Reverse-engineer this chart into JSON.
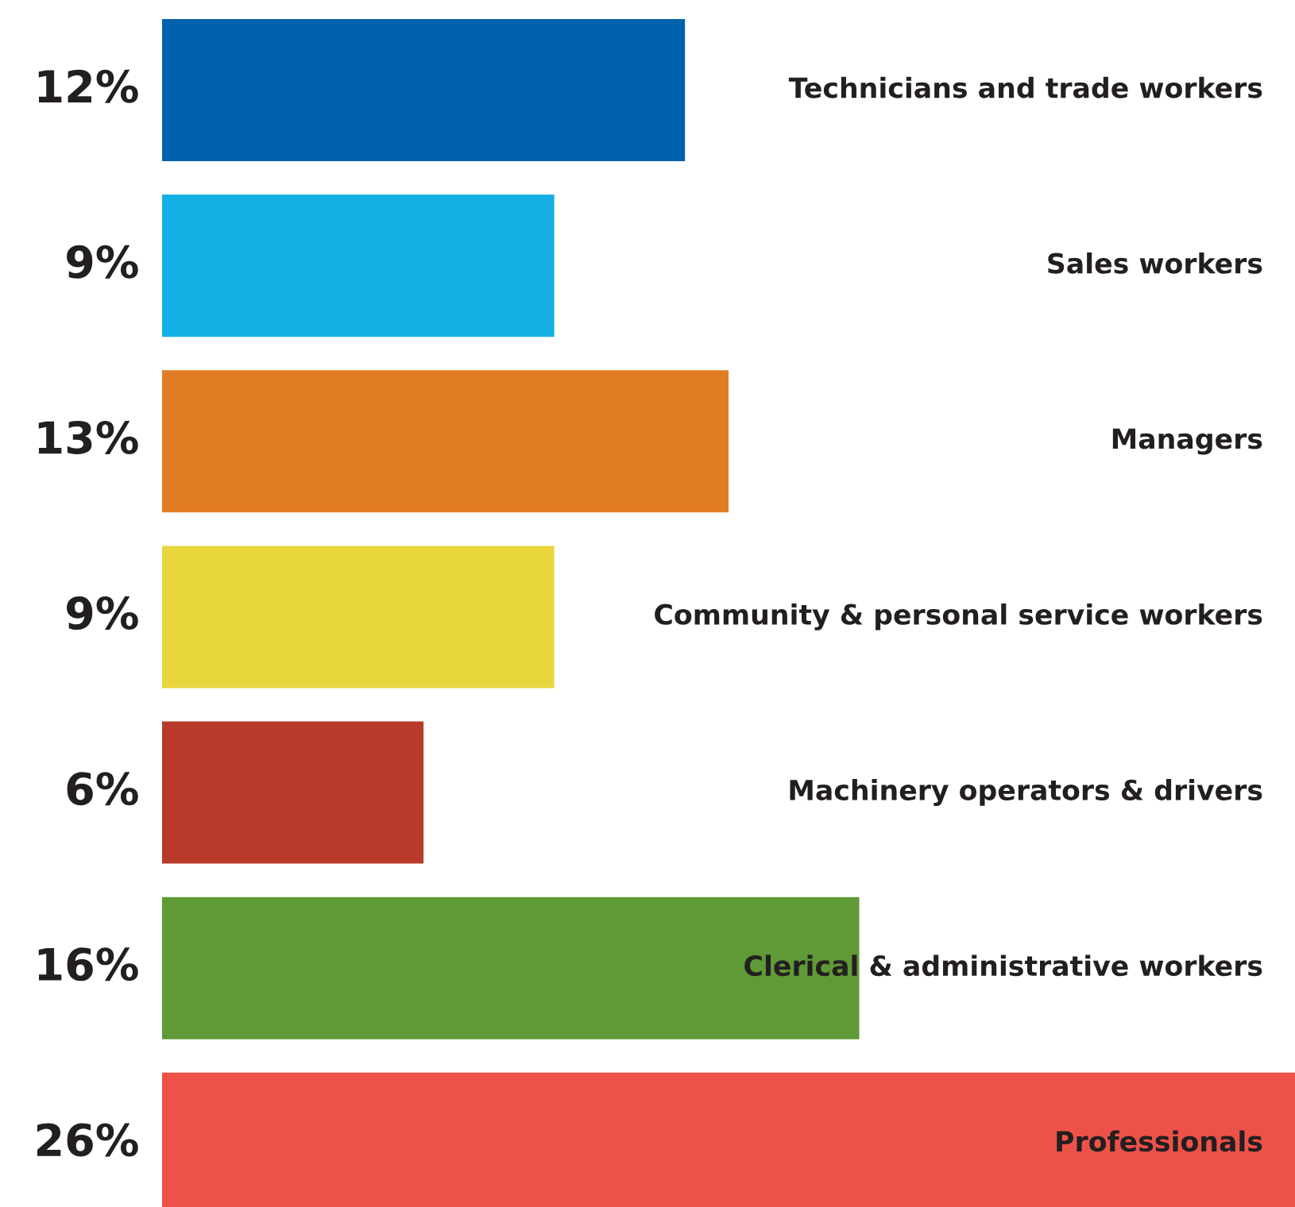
{
  "chart_data": {
    "type": "bar",
    "orientation": "horizontal",
    "categories": [
      "Technicians and trade workers",
      "Sales workers",
      "Managers",
      "Community & personal service workers",
      "Machinery operators & drivers",
      "Clerical & administrative workers",
      "Professionals"
    ],
    "values": [
      12,
      9,
      13,
      9,
      6,
      16,
      26
    ],
    "colors": [
      "#0062ad",
      "#13b0e6",
      "#e27c24",
      "#e8d63c",
      "#b83a2a",
      "#5f9a36",
      "#ee5148"
    ],
    "data_labels": true,
    "value_labels": [
      "12%",
      "9%",
      "13%",
      "9%",
      "6%",
      "16%",
      "26%"
    ]
  }
}
